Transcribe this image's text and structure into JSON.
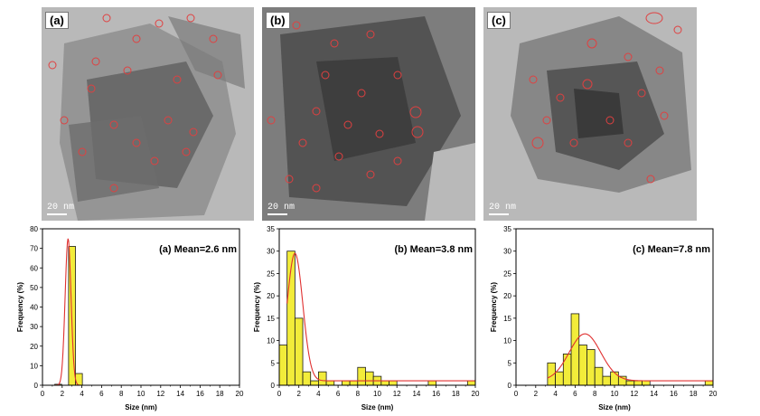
{
  "figure": {
    "micrographs": [
      {
        "label": "(a)",
        "scale_bar": "20 nm"
      },
      {
        "label": "(b)",
        "scale_bar": "20 nm"
      },
      {
        "label": "(c)",
        "scale_bar": "20 nm"
      }
    ]
  },
  "colors": {
    "bar_fill": "#f2ec3a",
    "bar_stroke": "#1a1a1a",
    "fit_line": "#e03030",
    "micrograph_bg": "#b9b9b9",
    "particle_circle": "#e04040"
  },
  "chart_data": [
    {
      "type": "bar",
      "title": "(a) Mean=2.6 nm",
      "xlabel": "Size (nm)",
      "ylabel": "Frequency (%)",
      "xlim": [
        0,
        20
      ],
      "ylim": [
        0,
        80
      ],
      "xticks": [
        0,
        2,
        4,
        6,
        8,
        10,
        12,
        14,
        16,
        18,
        20
      ],
      "yticks": [
        0,
        10,
        20,
        30,
        40,
        50,
        60,
        70,
        80
      ],
      "bin_width": 0.7,
      "x": [
        1.6,
        2.3,
        3.0,
        3.7
      ],
      "values": [
        0.5,
        0,
        71,
        6
      ],
      "fit": {
        "type": "gaussian",
        "mean": 2.6,
        "sigma": 0.3,
        "peak": 75
      }
    },
    {
      "type": "bar",
      "title": "(b) Mean=3.8 nm",
      "xlabel": "Size (nm)",
      "ylabel": "Frequency (%)",
      "xlim": [
        0,
        20
      ],
      "ylim": [
        0,
        35
      ],
      "xticks": [
        0,
        2,
        4,
        6,
        8,
        10,
        12,
        14,
        16,
        18,
        20
      ],
      "yticks": [
        0,
        5,
        10,
        15,
        20,
        25,
        30,
        35
      ],
      "bin_width": 0.8,
      "x": [
        0.4,
        1.2,
        2.0,
        2.8,
        3.6,
        4.4,
        5.2,
        6.0,
        6.8,
        7.6,
        8.4,
        9.2,
        10.0,
        10.8,
        11.6,
        12.4,
        13.2,
        14.0,
        14.8,
        15.6,
        16.4,
        17.2,
        18.0,
        18.8,
        19.6
      ],
      "values": [
        9,
        30,
        15,
        3,
        1,
        3,
        1,
        0,
        1,
        1,
        4,
        3,
        2,
        1,
        1,
        0,
        0,
        0,
        0,
        1,
        0,
        0,
        0,
        0,
        1
      ],
      "fit": {
        "type": "gaussian",
        "mean": 1.6,
        "sigma": 0.8,
        "peak": 29.5,
        "baseline": 1
      }
    },
    {
      "type": "bar",
      "title": "(c) Mean=7.8 nm",
      "xlabel": "Size (nm)",
      "ylabel": "Frequency (%)",
      "xlim": [
        0,
        20
      ],
      "ylim": [
        0,
        35
      ],
      "xticks": [
        0,
        2,
        4,
        6,
        8,
        10,
        12,
        14,
        16,
        18,
        20
      ],
      "yticks": [
        0,
        5,
        10,
        15,
        20,
        25,
        30,
        35
      ],
      "bin_width": 0.8,
      "x": [
        3.6,
        4.4,
        5.2,
        6.0,
        6.8,
        7.6,
        8.4,
        9.2,
        10.0,
        10.8,
        11.6,
        12.4,
        13.2,
        14.0,
        14.8,
        15.6,
        16.4,
        17.2,
        18.0,
        18.8,
        19.6
      ],
      "values": [
        5,
        3,
        7,
        16,
        9,
        8,
        4,
        2,
        3,
        2,
        1,
        1,
        1,
        0,
        0,
        0,
        0,
        0,
        0,
        0,
        1
      ],
      "fit": {
        "type": "gaussian",
        "mean": 7.0,
        "sigma": 1.6,
        "peak": 11.5,
        "baseline": 1,
        "xstart": 3.2
      }
    }
  ]
}
